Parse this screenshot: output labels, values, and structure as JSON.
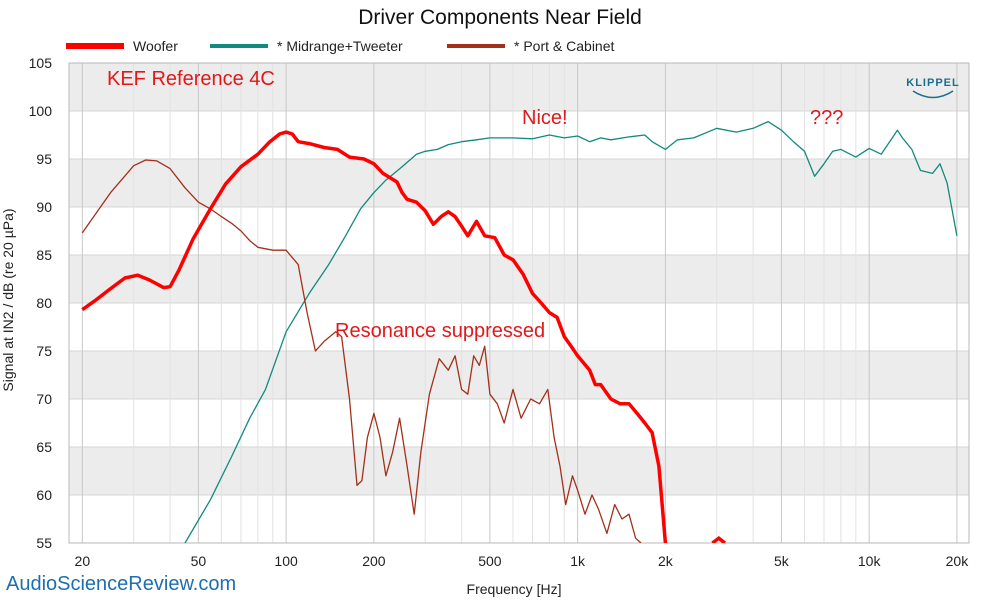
{
  "chart_data": {
    "type": "line",
    "title": "Driver Components Near Field",
    "xlabel": "Frequency [Hz]",
    "ylabel": "Signal at IN2 / dB (re 20 µPa)",
    "x_scale": "log",
    "xlim": [
      18,
      22000
    ],
    "ylim": [
      55,
      105
    ],
    "grid": true,
    "legend_position": "top",
    "x_ticks": [
      20,
      50,
      100,
      200,
      500,
      1000,
      2000,
      5000,
      10000,
      20000
    ],
    "x_tick_labels": [
      "20",
      "50",
      "100",
      "200",
      "500",
      "1k",
      "2k",
      "5k",
      "10k",
      "20k"
    ],
    "y_ticks": [
      55,
      60,
      65,
      70,
      75,
      80,
      85,
      90,
      95,
      100,
      105
    ],
    "series": [
      {
        "name": "Woofer",
        "color": "#ff0000",
        "points": [
          [
            20,
            79.3
          ],
          [
            22,
            80.2
          ],
          [
            25,
            81.5
          ],
          [
            28,
            82.6
          ],
          [
            31,
            82.9
          ],
          [
            34,
            82.4
          ],
          [
            38,
            81.6
          ],
          [
            40,
            81.7
          ],
          [
            43,
            83.5
          ],
          [
            48,
            86.7
          ],
          [
            55,
            89.8
          ],
          [
            62,
            92.4
          ],
          [
            70,
            94.2
          ],
          [
            80,
            95.5
          ],
          [
            88,
            96.8
          ],
          [
            95,
            97.6
          ],
          [
            100,
            97.8
          ],
          [
            105,
            97.6
          ],
          [
            110,
            96.8
          ],
          [
            120,
            96.6
          ],
          [
            135,
            96.2
          ],
          [
            150,
            96.0
          ],
          [
            165,
            95.2
          ],
          [
            185,
            95.0
          ],
          [
            200,
            94.5
          ],
          [
            215,
            93.5
          ],
          [
            240,
            92.6
          ],
          [
            250,
            91.5
          ],
          [
            260,
            90.8
          ],
          [
            280,
            90.5
          ],
          [
            300,
            89.6
          ],
          [
            320,
            88.2
          ],
          [
            340,
            89.0
          ],
          [
            360,
            89.5
          ],
          [
            380,
            89.0
          ],
          [
            400,
            88.0
          ],
          [
            420,
            87.0
          ],
          [
            450,
            88.5
          ],
          [
            480,
            87.0
          ],
          [
            520,
            86.8
          ],
          [
            560,
            85.0
          ],
          [
            600,
            84.5
          ],
          [
            650,
            83.0
          ],
          [
            700,
            81.0
          ],
          [
            750,
            80.0
          ],
          [
            800,
            79.0
          ],
          [
            850,
            78.5
          ],
          [
            900,
            76.5
          ],
          [
            950,
            75.5
          ],
          [
            1000,
            74.5
          ],
          [
            1100,
            73.0
          ],
          [
            1150,
            71.5
          ],
          [
            1200,
            71.5
          ],
          [
            1300,
            70.0
          ],
          [
            1400,
            69.5
          ],
          [
            1500,
            69.5
          ],
          [
            1600,
            68.5
          ],
          [
            1700,
            67.5
          ],
          [
            1800,
            66.5
          ],
          [
            1900,
            63.0
          ],
          [
            2000,
            55.0
          ]
        ]
      },
      {
        "name": "* Midrange+Tweeter",
        "color": "#128a7e",
        "points": [
          [
            45,
            55
          ],
          [
            55,
            59.5
          ],
          [
            65,
            64
          ],
          [
            75,
            68
          ],
          [
            85,
            71
          ],
          [
            100,
            77
          ],
          [
            120,
            81
          ],
          [
            140,
            84
          ],
          [
            160,
            87
          ],
          [
            180,
            89.8
          ],
          [
            200,
            91.5
          ],
          [
            220,
            92.8
          ],
          [
            250,
            94.2
          ],
          [
            280,
            95.5
          ],
          [
            300,
            95.8
          ],
          [
            330,
            96.0
          ],
          [
            360,
            96.5
          ],
          [
            400,
            96.8
          ],
          [
            450,
            97.0
          ],
          [
            500,
            97.2
          ],
          [
            600,
            97.2
          ],
          [
            700,
            97.1
          ],
          [
            800,
            97.5
          ],
          [
            900,
            97.2
          ],
          [
            1000,
            97.4
          ],
          [
            1100,
            96.8
          ],
          [
            1200,
            97.2
          ],
          [
            1300,
            97.0
          ],
          [
            1500,
            97.3
          ],
          [
            1700,
            97.5
          ],
          [
            1800,
            96.8
          ],
          [
            2000,
            96.0
          ],
          [
            2200,
            97.0
          ],
          [
            2500,
            97.2
          ],
          [
            3000,
            98.2
          ],
          [
            3500,
            97.8
          ],
          [
            4000,
            98.2
          ],
          [
            4500,
            98.9
          ],
          [
            5000,
            98.0
          ],
          [
            5500,
            96.8
          ],
          [
            6000,
            95.8
          ],
          [
            6500,
            93.2
          ],
          [
            7000,
            94.5
          ],
          [
            7500,
            95.8
          ],
          [
            8000,
            96.0
          ],
          [
            9000,
            95.2
          ],
          [
            10000,
            96.1
          ],
          [
            11000,
            95.5
          ],
          [
            12000,
            97.2
          ],
          [
            12500,
            98.0
          ],
          [
            13000,
            97.2
          ],
          [
            14000,
            96.0
          ],
          [
            15000,
            93.8
          ],
          [
            16500,
            93.5
          ],
          [
            17500,
            94.5
          ],
          [
            18500,
            92.5
          ],
          [
            20000,
            87.0
          ]
        ]
      },
      {
        "name": "* Port & Cabinet",
        "color": "#a2301a",
        "points": [
          [
            20,
            87.3
          ],
          [
            25,
            91.5
          ],
          [
            30,
            94.3
          ],
          [
            33,
            94.9
          ],
          [
            36,
            94.8
          ],
          [
            40,
            94.0
          ],
          [
            45,
            92.0
          ],
          [
            50,
            90.5
          ],
          [
            55,
            89.8
          ],
          [
            60,
            89.0
          ],
          [
            65,
            88.3
          ],
          [
            70,
            87.5
          ],
          [
            75,
            86.5
          ],
          [
            80,
            85.8
          ],
          [
            90,
            85.5
          ],
          [
            100,
            85.5
          ],
          [
            110,
            84.0
          ],
          [
            118,
            79.0
          ],
          [
            126,
            75.0
          ],
          [
            135,
            76.0
          ],
          [
            148,
            77.0
          ],
          [
            155,
            76.5
          ],
          [
            165,
            70.0
          ],
          [
            175,
            61.0
          ],
          [
            182,
            61.5
          ],
          [
            190,
            66.0
          ],
          [
            200,
            68.5
          ],
          [
            210,
            66.0
          ],
          [
            220,
            62.0
          ],
          [
            232,
            64.5
          ],
          [
            245,
            68.0
          ],
          [
            260,
            63.0
          ],
          [
            275,
            58.0
          ],
          [
            290,
            64.5
          ],
          [
            310,
            70.5
          ],
          [
            335,
            74.2
          ],
          [
            360,
            73.0
          ],
          [
            380,
            74.5
          ],
          [
            400,
            71.0
          ],
          [
            420,
            70.5
          ],
          [
            440,
            74.5
          ],
          [
            460,
            73.5
          ],
          [
            480,
            75.5
          ],
          [
            500,
            70.5
          ],
          [
            530,
            69.5
          ],
          [
            560,
            67.5
          ],
          [
            600,
            71.0
          ],
          [
            640,
            68.0
          ],
          [
            690,
            70.0
          ],
          [
            740,
            69.5
          ],
          [
            790,
            71.0
          ],
          [
            830,
            66.0
          ],
          [
            870,
            63.0
          ],
          [
            910,
            59.0
          ],
          [
            960,
            62.0
          ],
          [
            1000,
            60.5
          ],
          [
            1060,
            58.0
          ],
          [
            1120,
            60.0
          ],
          [
            1180,
            58.5
          ],
          [
            1260,
            56.0
          ],
          [
            1340,
            59.0
          ],
          [
            1420,
            57.5
          ],
          [
            1500,
            58.0
          ],
          [
            1580,
            55.5
          ],
          [
            1650,
            55.0
          ]
        ]
      }
    ],
    "annotations": [
      {
        "text": "KEF Reference 4C",
        "color": "#e0191b"
      },
      {
        "text": "Nice!",
        "color": "#e0191b"
      },
      {
        "text": "???",
        "color": "#e0191b"
      },
      {
        "text": "Resonance suppressed",
        "color": "#e0191b"
      }
    ]
  },
  "branding": {
    "logo": "KLIPPEL",
    "watermark": "AudioScienceReview.com",
    "logo_color": "#1a6f8c",
    "watermark_color": "#1e6fb0"
  }
}
